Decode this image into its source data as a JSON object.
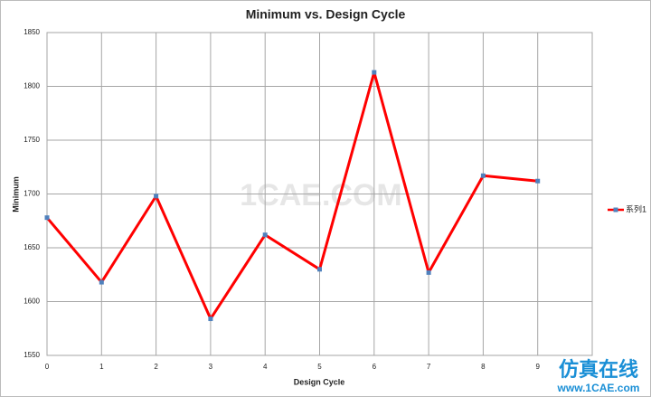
{
  "chart_data": {
    "type": "line",
    "title": "Minimum vs. Design Cycle",
    "x_label": "Design Cycle",
    "y_label": "Minimum",
    "x": [
      0,
      1,
      2,
      3,
      4,
      5,
      6,
      7,
      8,
      9
    ],
    "series": [
      {
        "name": "系列1",
        "color": "#ff0000",
        "marker_color": "#4f81bd",
        "values": [
          1678,
          1618,
          1698,
          1584,
          1662,
          1630,
          1813,
          1627,
          1717,
          1712
        ]
      }
    ],
    "xlim": [
      0,
      10
    ],
    "xticks": [
      0,
      1,
      2,
      3,
      4,
      5,
      6,
      7,
      8,
      9
    ],
    "ylim": [
      1550,
      1850
    ],
    "yticks": [
      1550,
      1600,
      1650,
      1700,
      1750,
      1800,
      1850
    ],
    "grid": true,
    "legend": "right"
  },
  "watermark": {
    "center": "1CAE.COM",
    "brand": "仿真在线",
    "site": "www.1CAE.com"
  }
}
